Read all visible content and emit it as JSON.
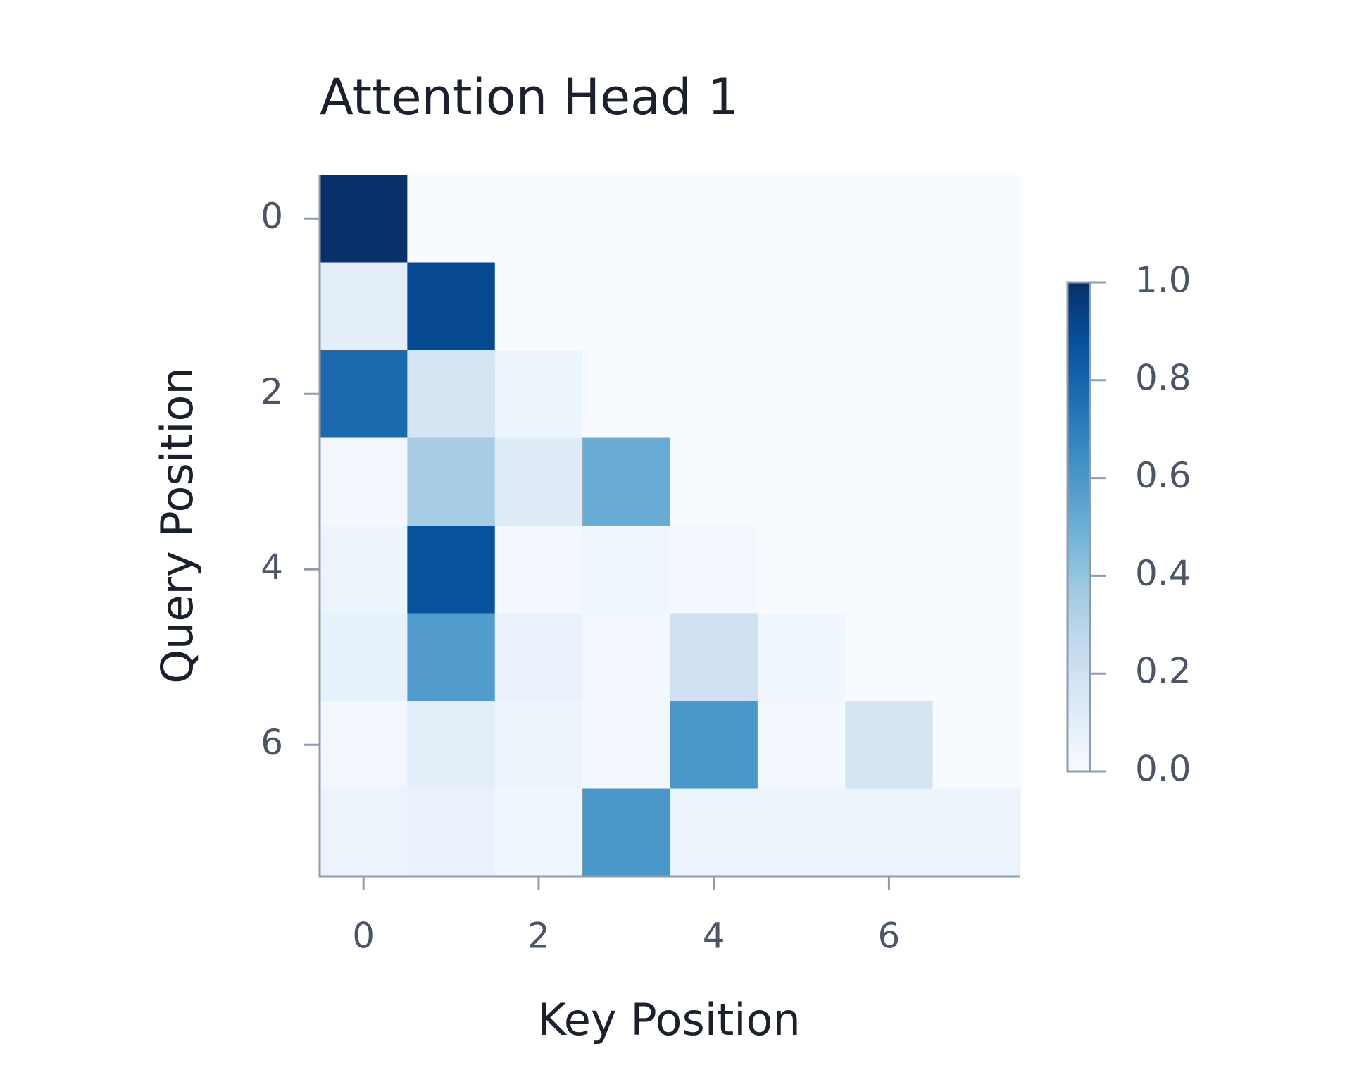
{
  "chart_data": {
    "type": "heatmap",
    "title": "Attention Head 1",
    "x_label": "Key Position",
    "y_label": "Query Position",
    "colormap": "Blues",
    "values": [
      [
        1.0,
        0,
        0,
        0,
        0,
        0,
        0,
        0
      ],
      [
        0.1,
        0.9,
        0,
        0,
        0,
        0,
        0,
        0
      ],
      [
        0.78,
        0.17,
        0.05,
        0,
        0,
        0,
        0,
        0
      ],
      [
        0.02,
        0.35,
        0.12,
        0.51,
        0,
        0,
        0,
        0
      ],
      [
        0.05,
        0.87,
        0.02,
        0.04,
        0.02,
        0,
        0,
        0
      ],
      [
        0.08,
        0.58,
        0.07,
        0.02,
        0.21,
        0.04,
        0,
        0
      ],
      [
        0.03,
        0.1,
        0.05,
        0.03,
        0.6,
        0.02,
        0.17,
        0
      ],
      [
        0.06,
        0.07,
        0.04,
        0.6,
        0.06,
        0.05,
        0.06,
        0.06
      ]
    ],
    "xlim": [
      -0.5,
      7.5
    ],
    "xticks": [
      0,
      2,
      4,
      6
    ],
    "ylim": [
      7.5,
      -0.5
    ],
    "yticks": [
      0,
      2,
      4,
      6
    ],
    "clim": [
      0,
      1
    ],
    "cticks": [
      {
        "value": 0,
        "label": "0.0"
      },
      {
        "value": 0.2,
        "label": "0.2"
      },
      {
        "value": 0.4,
        "label": "0.4"
      },
      {
        "value": 0.6,
        "label": "0.6"
      },
      {
        "value": 0.8,
        "label": "0.8"
      },
      {
        "value": 1,
        "label": "1.0"
      }
    ]
  }
}
